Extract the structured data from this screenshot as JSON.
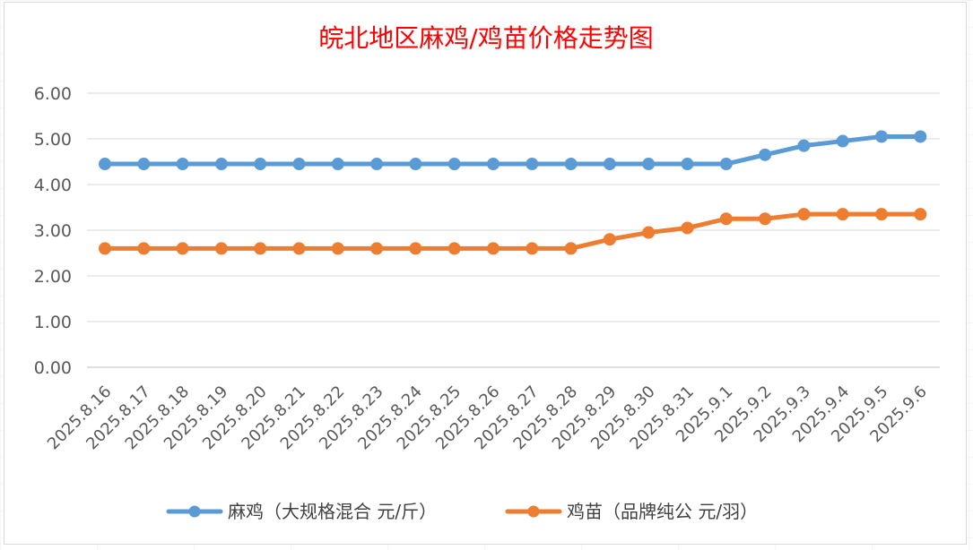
{
  "chart_data": {
    "type": "line",
    "title": "皖北地区麻鸡/鸡苗价格走势图",
    "categories": [
      "2025.8.16",
      "2025.8.17",
      "2025.8.18",
      "2025.8.19",
      "2025.8.20",
      "2025.8.21",
      "2025.8.22",
      "2025.8.23",
      "2025.8.24",
      "2025.8.25",
      "2025.8.26",
      "2025.8.27",
      "2025.8.28",
      "2025.8.29",
      "2025.8.30",
      "2025.8.31",
      "2025.9.1",
      "2025.9.2",
      "2025.9.3",
      "2025.9.4",
      "2025.9.5",
      "2025.9.6"
    ],
    "y_ticks": [
      "6.00",
      "5.00",
      "4.00",
      "3.00",
      "2.00",
      "1.00",
      "0.00"
    ],
    "ylim": [
      0,
      6
    ],
    "grid": true,
    "legend_position": "bottom",
    "series": [
      {
        "name": "麻鸡（大规格混合 元/斤）",
        "color": "#5b9bd5",
        "values": [
          4.45,
          4.45,
          4.45,
          4.45,
          4.45,
          4.45,
          4.45,
          4.45,
          4.45,
          4.45,
          4.45,
          4.45,
          4.45,
          4.45,
          4.45,
          4.45,
          4.45,
          4.65,
          4.85,
          4.95,
          5.05,
          5.05
        ]
      },
      {
        "name": "鸡苗（品牌纯公 元/羽）",
        "color": "#ed7d31",
        "values": [
          2.6,
          2.6,
          2.6,
          2.6,
          2.6,
          2.6,
          2.6,
          2.6,
          2.6,
          2.6,
          2.6,
          2.6,
          2.6,
          2.8,
          2.95,
          3.05,
          3.25,
          3.25,
          3.35,
          3.35,
          3.35,
          3.35
        ]
      }
    ],
    "title_color": "#ff0000"
  }
}
